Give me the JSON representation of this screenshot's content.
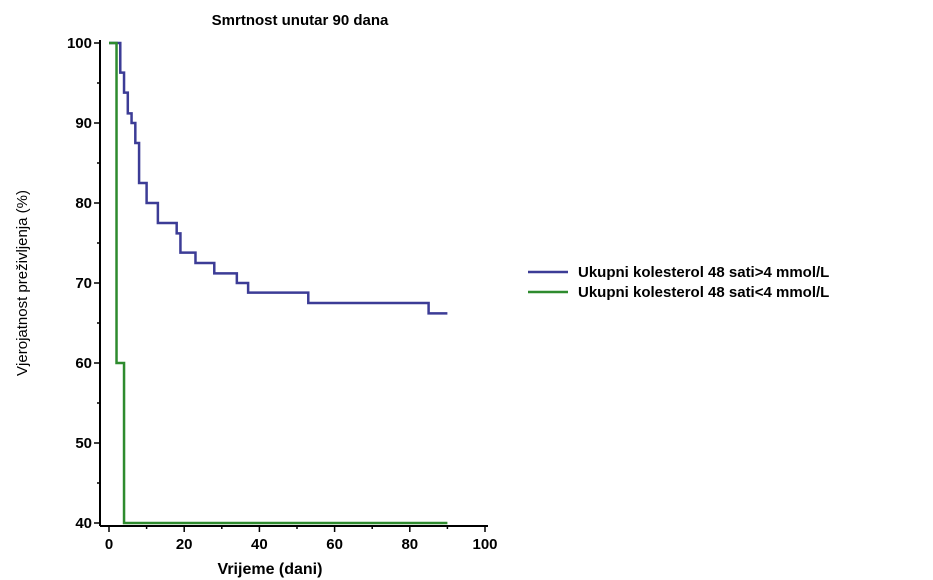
{
  "chart_data": {
    "type": "line",
    "title": "Smrtnost unutar 90 dana",
    "xlabel": "Vrijeme (dani)",
    "ylabel": "Vjerojatnost preživljenja (%)",
    "xlim": [
      0,
      100
    ],
    "ylim": [
      40,
      100
    ],
    "xticks": [
      0,
      20,
      40,
      60,
      80,
      100
    ],
    "yticks": [
      40,
      50,
      60,
      70,
      80,
      90,
      100
    ],
    "legend_position": "right",
    "grid": false,
    "step": true,
    "series": [
      {
        "name": "Ukupni kolesterol 48 sati>4 mmol/L",
        "color": "#3c3c96",
        "x": [
          0,
          2.5,
          3,
          4,
          5,
          6,
          7,
          8,
          10,
          13,
          18,
          19,
          23,
          28,
          34,
          37,
          53,
          85,
          90
        ],
        "y": [
          100,
          100,
          96.3,
          93.8,
          91.2,
          90.0,
          87.5,
          82.5,
          80.0,
          77.5,
          76.2,
          73.8,
          72.5,
          71.2,
          70.0,
          68.8,
          67.5,
          66.2,
          66.2
        ]
      },
      {
        "name": "Ukupni kolesterol 48 sati<4 mmol/L",
        "color": "#2e8b2e",
        "x": [
          0,
          2,
          4,
          90
        ],
        "y": [
          100,
          60,
          40,
          40
        ]
      }
    ]
  }
}
